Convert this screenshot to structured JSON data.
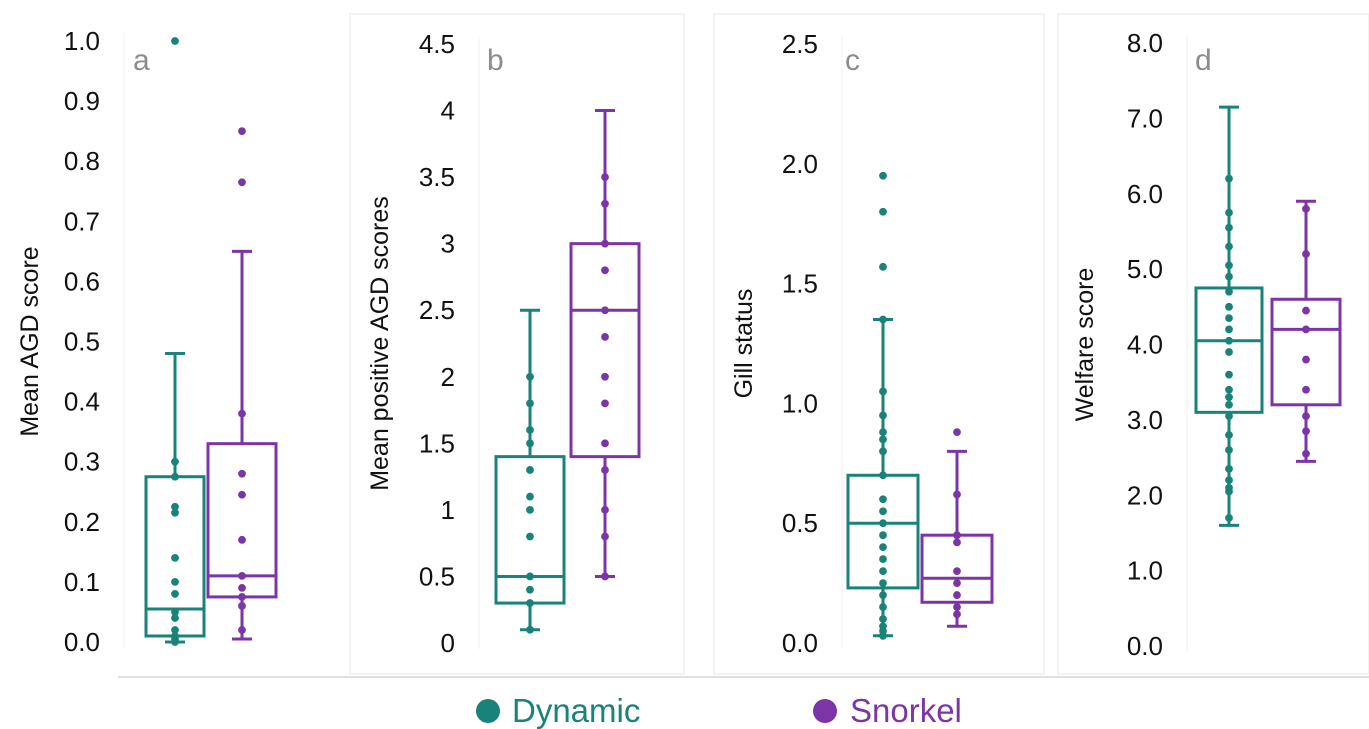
{
  "legend": {
    "position": "bottom-center",
    "items": [
      {
        "label": "Dynamic",
        "color": "#1a8379"
      },
      {
        "label": "Snorkel",
        "color": "#7b35a6"
      }
    ]
  },
  "colors": {
    "dynamic": "#1a8379",
    "snorkel": "#7b35a6",
    "axis_text": "#111111",
    "panel_letter": "#8c8c8c"
  },
  "chart_data": [
    {
      "type": "box",
      "panel_label": "a",
      "ylabel": "Mean AGD score",
      "xlabel": "",
      "ylim": [
        0,
        1.0
      ],
      "yticks": [
        "0.0",
        "0.1",
        "0.2",
        "0.3",
        "0.4",
        "0.5",
        "0.6",
        "0.7",
        "0.8",
        "0.9",
        "1.0"
      ],
      "grid": false,
      "series": [
        {
          "name": "Dynamic",
          "box": {
            "q1": 0.01,
            "median": 0.055,
            "q3": 0.275,
            "whisker_low": 0.0,
            "whisker_high": 0.48
          },
          "points": [
            1.0,
            0.3,
            0.275,
            0.225,
            0.215,
            0.14,
            0.1,
            0.08,
            0.05,
            0.04,
            0.02,
            0.01,
            0.005,
            0.0
          ]
        },
        {
          "name": "Snorkel",
          "box": {
            "q1": 0.075,
            "median": 0.11,
            "q3": 0.33,
            "whisker_low": 0.005,
            "whisker_high": 0.65
          },
          "points": [
            0.85,
            0.765,
            0.38,
            0.28,
            0.245,
            0.17,
            0.11,
            0.09,
            0.075,
            0.06,
            0.02
          ]
        }
      ]
    },
    {
      "type": "box",
      "panel_label": "b",
      "ylabel": "Mean positive AGD scores",
      "xlabel": "",
      "ylim": [
        0,
        4.5
      ],
      "yticks": [
        "0",
        "0.5",
        "1",
        "1.5",
        "2",
        "2.5",
        "3",
        "3.5",
        "4",
        "4.5"
      ],
      "grid": false,
      "series": [
        {
          "name": "Dynamic",
          "box": {
            "q1": 0.3,
            "median": 0.5,
            "q3": 1.4,
            "whisker_low": 0.1,
            "whisker_high": 2.5
          },
          "points": [
            2.0,
            1.8,
            1.6,
            1.5,
            1.3,
            1.1,
            1.0,
            0.8,
            0.5,
            0.4,
            0.3,
            0.1
          ]
        },
        {
          "name": "Snorkel",
          "box": {
            "q1": 1.4,
            "median": 2.5,
            "q3": 3.0,
            "whisker_low": 0.5,
            "whisker_high": 4.0
          },
          "points": [
            3.5,
            3.3,
            3.0,
            2.8,
            2.5,
            2.3,
            2.0,
            1.8,
            1.5,
            1.3,
            1.0,
            0.8,
            0.5
          ]
        }
      ]
    },
    {
      "type": "box",
      "panel_label": "c",
      "ylabel": "Gill status",
      "xlabel": "",
      "ylim": [
        0,
        2.5
      ],
      "yticks": [
        "0.0",
        "0.5",
        "1.0",
        "1.5",
        "2.0",
        "2.5"
      ],
      "grid": false,
      "series": [
        {
          "name": "Dynamic",
          "box": {
            "q1": 0.23,
            "median": 0.5,
            "q3": 0.7,
            "whisker_low": 0.03,
            "whisker_high": 1.35
          },
          "points": [
            1.95,
            1.8,
            1.57,
            1.35,
            1.05,
            0.95,
            0.88,
            0.85,
            0.8,
            0.7,
            0.6,
            0.55,
            0.5,
            0.45,
            0.4,
            0.35,
            0.3,
            0.25,
            0.2,
            0.15,
            0.1,
            0.07,
            0.05,
            0.03
          ]
        },
        {
          "name": "Snorkel",
          "box": {
            "q1": 0.17,
            "median": 0.27,
            "q3": 0.45,
            "whisker_low": 0.07,
            "whisker_high": 0.8
          },
          "points": [
            0.88,
            0.62,
            0.45,
            0.42,
            0.3,
            0.25,
            0.2,
            0.15,
            0.12
          ]
        }
      ]
    },
    {
      "type": "box",
      "panel_label": "d",
      "ylabel": "Welfare score",
      "xlabel": "",
      "ylim": [
        0,
        8.0
      ],
      "yticks": [
        "0.0",
        "1.0",
        "2.0",
        "3.0",
        "4.0",
        "5.0",
        "6.0",
        "7.0",
        "8.0"
      ],
      "grid": false,
      "series": [
        {
          "name": "Dynamic",
          "box": {
            "q1": 3.1,
            "median": 4.05,
            "q3": 4.75,
            "whisker_low": 1.6,
            "whisker_high": 7.15
          },
          "points": [
            6.2,
            5.75,
            5.55,
            5.3,
            5.05,
            4.9,
            4.7,
            4.5,
            4.35,
            4.2,
            4.05,
            3.9,
            3.6,
            3.4,
            3.3,
            3.2,
            3.05,
            2.8,
            2.6,
            2.35,
            2.2,
            2.1,
            2.05,
            1.7
          ]
        },
        {
          "name": "Snorkel",
          "box": {
            "q1": 3.2,
            "median": 4.2,
            "q3": 4.6,
            "whisker_low": 2.45,
            "whisker_high": 5.9
          },
          "points": [
            5.8,
            5.2,
            4.45,
            4.2,
            3.8,
            3.4,
            3.05,
            2.85,
            2.55
          ]
        }
      ]
    }
  ]
}
